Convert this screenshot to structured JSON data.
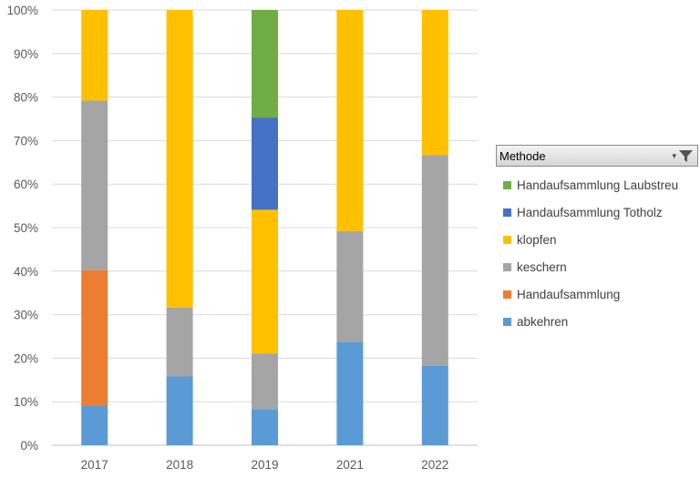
{
  "chart_data": {
    "type": "bar",
    "stacked": true,
    "normalized_percent": true,
    "categories": [
      "2017",
      "2018",
      "2019",
      "2021",
      "2022"
    ],
    "series": [
      {
        "name": "abkehren",
        "color": "#5b9bd5",
        "values": [
          9,
          15.8,
          8.3,
          23.8,
          18.2
        ]
      },
      {
        "name": "Handaufsammlung",
        "color": "#ed7d31",
        "values": [
          31.2,
          0,
          0,
          0,
          0
        ]
      },
      {
        "name": "keschern",
        "color": "#a5a5a5",
        "values": [
          39,
          15.8,
          12.8,
          25.4,
          48.5
        ]
      },
      {
        "name": "klopfen",
        "color": "#ffc000",
        "values": [
          20.8,
          68.4,
          33,
          50.8,
          33.3
        ]
      },
      {
        "name": "Handaufsammlung Totholz",
        "color": "#4472c4",
        "values": [
          0,
          0,
          21.2,
          0,
          0
        ]
      },
      {
        "name": "Handaufsammlung Laubstreu",
        "color": "#70ad47",
        "values": [
          0,
          0,
          24.7,
          0,
          0
        ]
      }
    ],
    "yticks": [
      "0%",
      "10%",
      "20%",
      "30%",
      "40%",
      "50%",
      "60%",
      "70%",
      "80%",
      "90%",
      "100%"
    ],
    "ylim": [
      0,
      100
    ],
    "grid": true,
    "legend_position": "right"
  },
  "legend": {
    "field_label": "Methode",
    "filter_icon": "filter-funnel-icon",
    "items": [
      {
        "label": "Handaufsammlung Laubstreu",
        "color": "#70ad47"
      },
      {
        "label": "Handaufsammlung Totholz",
        "color": "#4472c4"
      },
      {
        "label": "klopfen",
        "color": "#ffc000"
      },
      {
        "label": "keschern",
        "color": "#a5a5a5"
      },
      {
        "label": "Handaufsammlung",
        "color": "#ed7d31"
      },
      {
        "label": "abkehren",
        "color": "#5b9bd5"
      }
    ]
  }
}
